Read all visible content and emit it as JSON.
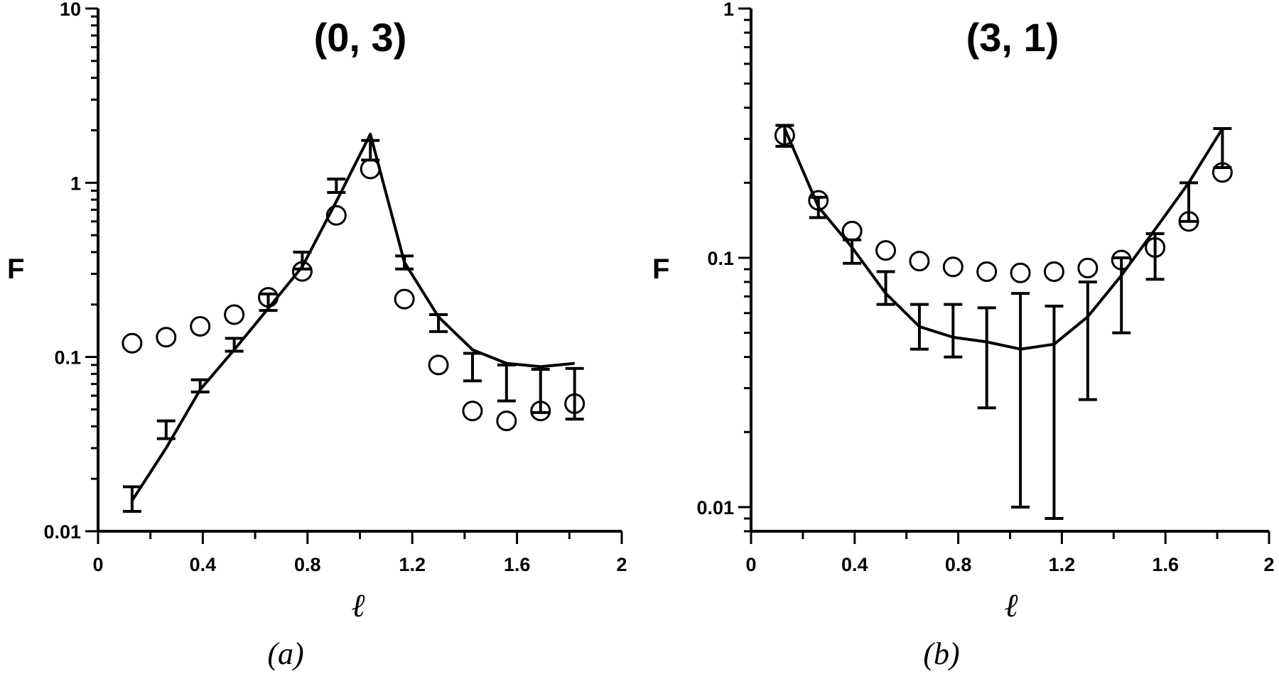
{
  "chart_data": [
    {
      "type": "scatter",
      "title": "(0, 3)",
      "caption": "(a)",
      "xlabel": "ℓ",
      "ylabel": "F",
      "xlim": [
        0,
        2
      ],
      "ylim": [
        0.01,
        10
      ],
      "yscale": "log",
      "x_ticks": [
        "0",
        "0.4",
        "0.8",
        "1.2",
        "1.6",
        "2"
      ],
      "y_ticks": [
        "0.01",
        "0.1",
        "1",
        "10"
      ],
      "grid": false,
      "series": [
        {
          "style": "line",
          "x": [
            0.13,
            0.26,
            0.39,
            0.52,
            0.65,
            0.78,
            0.91,
            1.04,
            1.17,
            1.3,
            1.43,
            1.56,
            1.69,
            1.82
          ],
          "y": [
            0.015,
            0.03,
            0.065,
            0.11,
            0.19,
            0.33,
            0.78,
            1.9,
            0.35,
            0.17,
            0.11,
            0.092,
            0.088,
            0.092
          ]
        },
        {
          "style": "errorbar",
          "x": [
            0.13,
            0.26,
            0.39,
            0.52,
            0.65,
            0.78,
            0.91,
            1.04,
            1.17,
            1.3,
            1.43,
            1.56,
            1.69,
            1.82
          ],
          "low": [
            0.013,
            0.034,
            0.063,
            0.108,
            0.185,
            0.32,
            0.88,
            1.35,
            0.32,
            0.14,
            0.073,
            0.056,
            0.048,
            0.044
          ],
          "high": [
            0.018,
            0.043,
            0.074,
            0.128,
            0.23,
            0.4,
            1.05,
            1.75,
            0.38,
            0.175,
            0.105,
            0.09,
            0.085,
            0.086
          ]
        },
        {
          "style": "circle",
          "x": [
            0.13,
            0.26,
            0.39,
            0.52,
            0.65,
            0.78,
            0.91,
            1.04,
            1.17,
            1.3,
            1.43,
            1.56,
            1.69,
            1.82
          ],
          "y": [
            0.12,
            0.13,
            0.15,
            0.175,
            0.22,
            0.31,
            0.65,
            1.2,
            0.215,
            0.09,
            0.049,
            0.043,
            0.049,
            0.054
          ]
        }
      ]
    },
    {
      "type": "scatter",
      "title": "(3, 1)",
      "caption": "(b)",
      "xlabel": "ℓ",
      "ylabel": "F",
      "xlim": [
        0,
        2
      ],
      "ylim": [
        0.008,
        1
      ],
      "yscale": "log",
      "x_ticks": [
        "0",
        "0.4",
        "0.8",
        "1.2",
        "1.6",
        "2"
      ],
      "y_ticks": [
        "0.01",
        "0.1",
        "1"
      ],
      "grid": false,
      "series": [
        {
          "style": "line",
          "x": [
            0.13,
            0.26,
            0.39,
            0.52,
            0.65,
            0.78,
            0.91,
            1.04,
            1.17,
            1.3,
            1.43,
            1.56,
            1.69,
            1.82
          ],
          "y": [
            0.33,
            0.16,
            0.11,
            0.072,
            0.053,
            0.048,
            0.046,
            0.043,
            0.045,
            0.058,
            0.085,
            0.13,
            0.2,
            0.33
          ]
        },
        {
          "style": "errorbar",
          "x": [
            0.13,
            0.26,
            0.39,
            0.52,
            0.65,
            0.78,
            0.91,
            1.04,
            1.17,
            1.3,
            1.43,
            1.56,
            1.69,
            1.82
          ],
          "low": [
            0.28,
            0.145,
            0.095,
            0.065,
            0.043,
            0.04,
            0.025,
            0.01,
            0.009,
            0.027,
            0.05,
            0.082,
            0.14,
            0.23
          ],
          "high": [
            0.34,
            0.175,
            0.118,
            0.088,
            0.065,
            0.065,
            0.063,
            0.072,
            0.064,
            0.08,
            0.1,
            0.125,
            0.2,
            0.33
          ]
        },
        {
          "style": "circle",
          "x": [
            0.13,
            0.26,
            0.39,
            0.52,
            0.65,
            0.78,
            0.91,
            1.04,
            1.17,
            1.3,
            1.43,
            1.56,
            1.69,
            1.82
          ],
          "y": [
            0.31,
            0.17,
            0.128,
            0.107,
            0.097,
            0.092,
            0.088,
            0.087,
            0.088,
            0.091,
            0.098,
            0.11,
            0.14,
            0.22
          ]
        }
      ]
    }
  ]
}
